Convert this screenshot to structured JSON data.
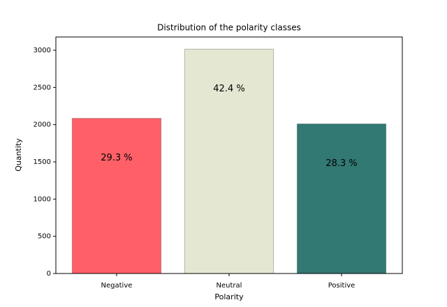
{
  "chart_data": {
    "type": "bar",
    "title": "Distribution of the polarity classes",
    "x_label": "Polarity",
    "y_label": "Quantity",
    "categories": [
      "Negative",
      "Neutral",
      "Positive"
    ],
    "values": [
      2085,
      3015,
      2010
    ],
    "colors": [
      "#ff5f67",
      "#e4e7d1",
      "#327873"
    ],
    "annotations": [
      "29.3 %",
      "42.4 %",
      "28.3 %"
    ],
    "ylim": [
      0,
      3178
    ],
    "yticks": [
      0,
      500,
      1000,
      1500,
      2000,
      2500,
      3000
    ],
    "grid": false
  }
}
